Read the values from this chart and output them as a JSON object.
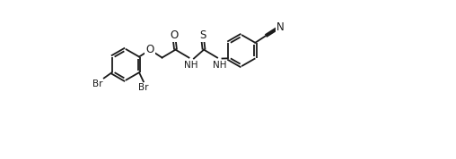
{
  "bg_color": "#ffffff",
  "line_color": "#1a1a1a",
  "line_width": 1.3,
  "font_size": 7.5,
  "figsize": [
    5.08,
    1.78
  ],
  "dpi": 100,
  "xlim": [
    0,
    10.16
  ],
  "ylim": [
    -1.5,
    2.8
  ]
}
